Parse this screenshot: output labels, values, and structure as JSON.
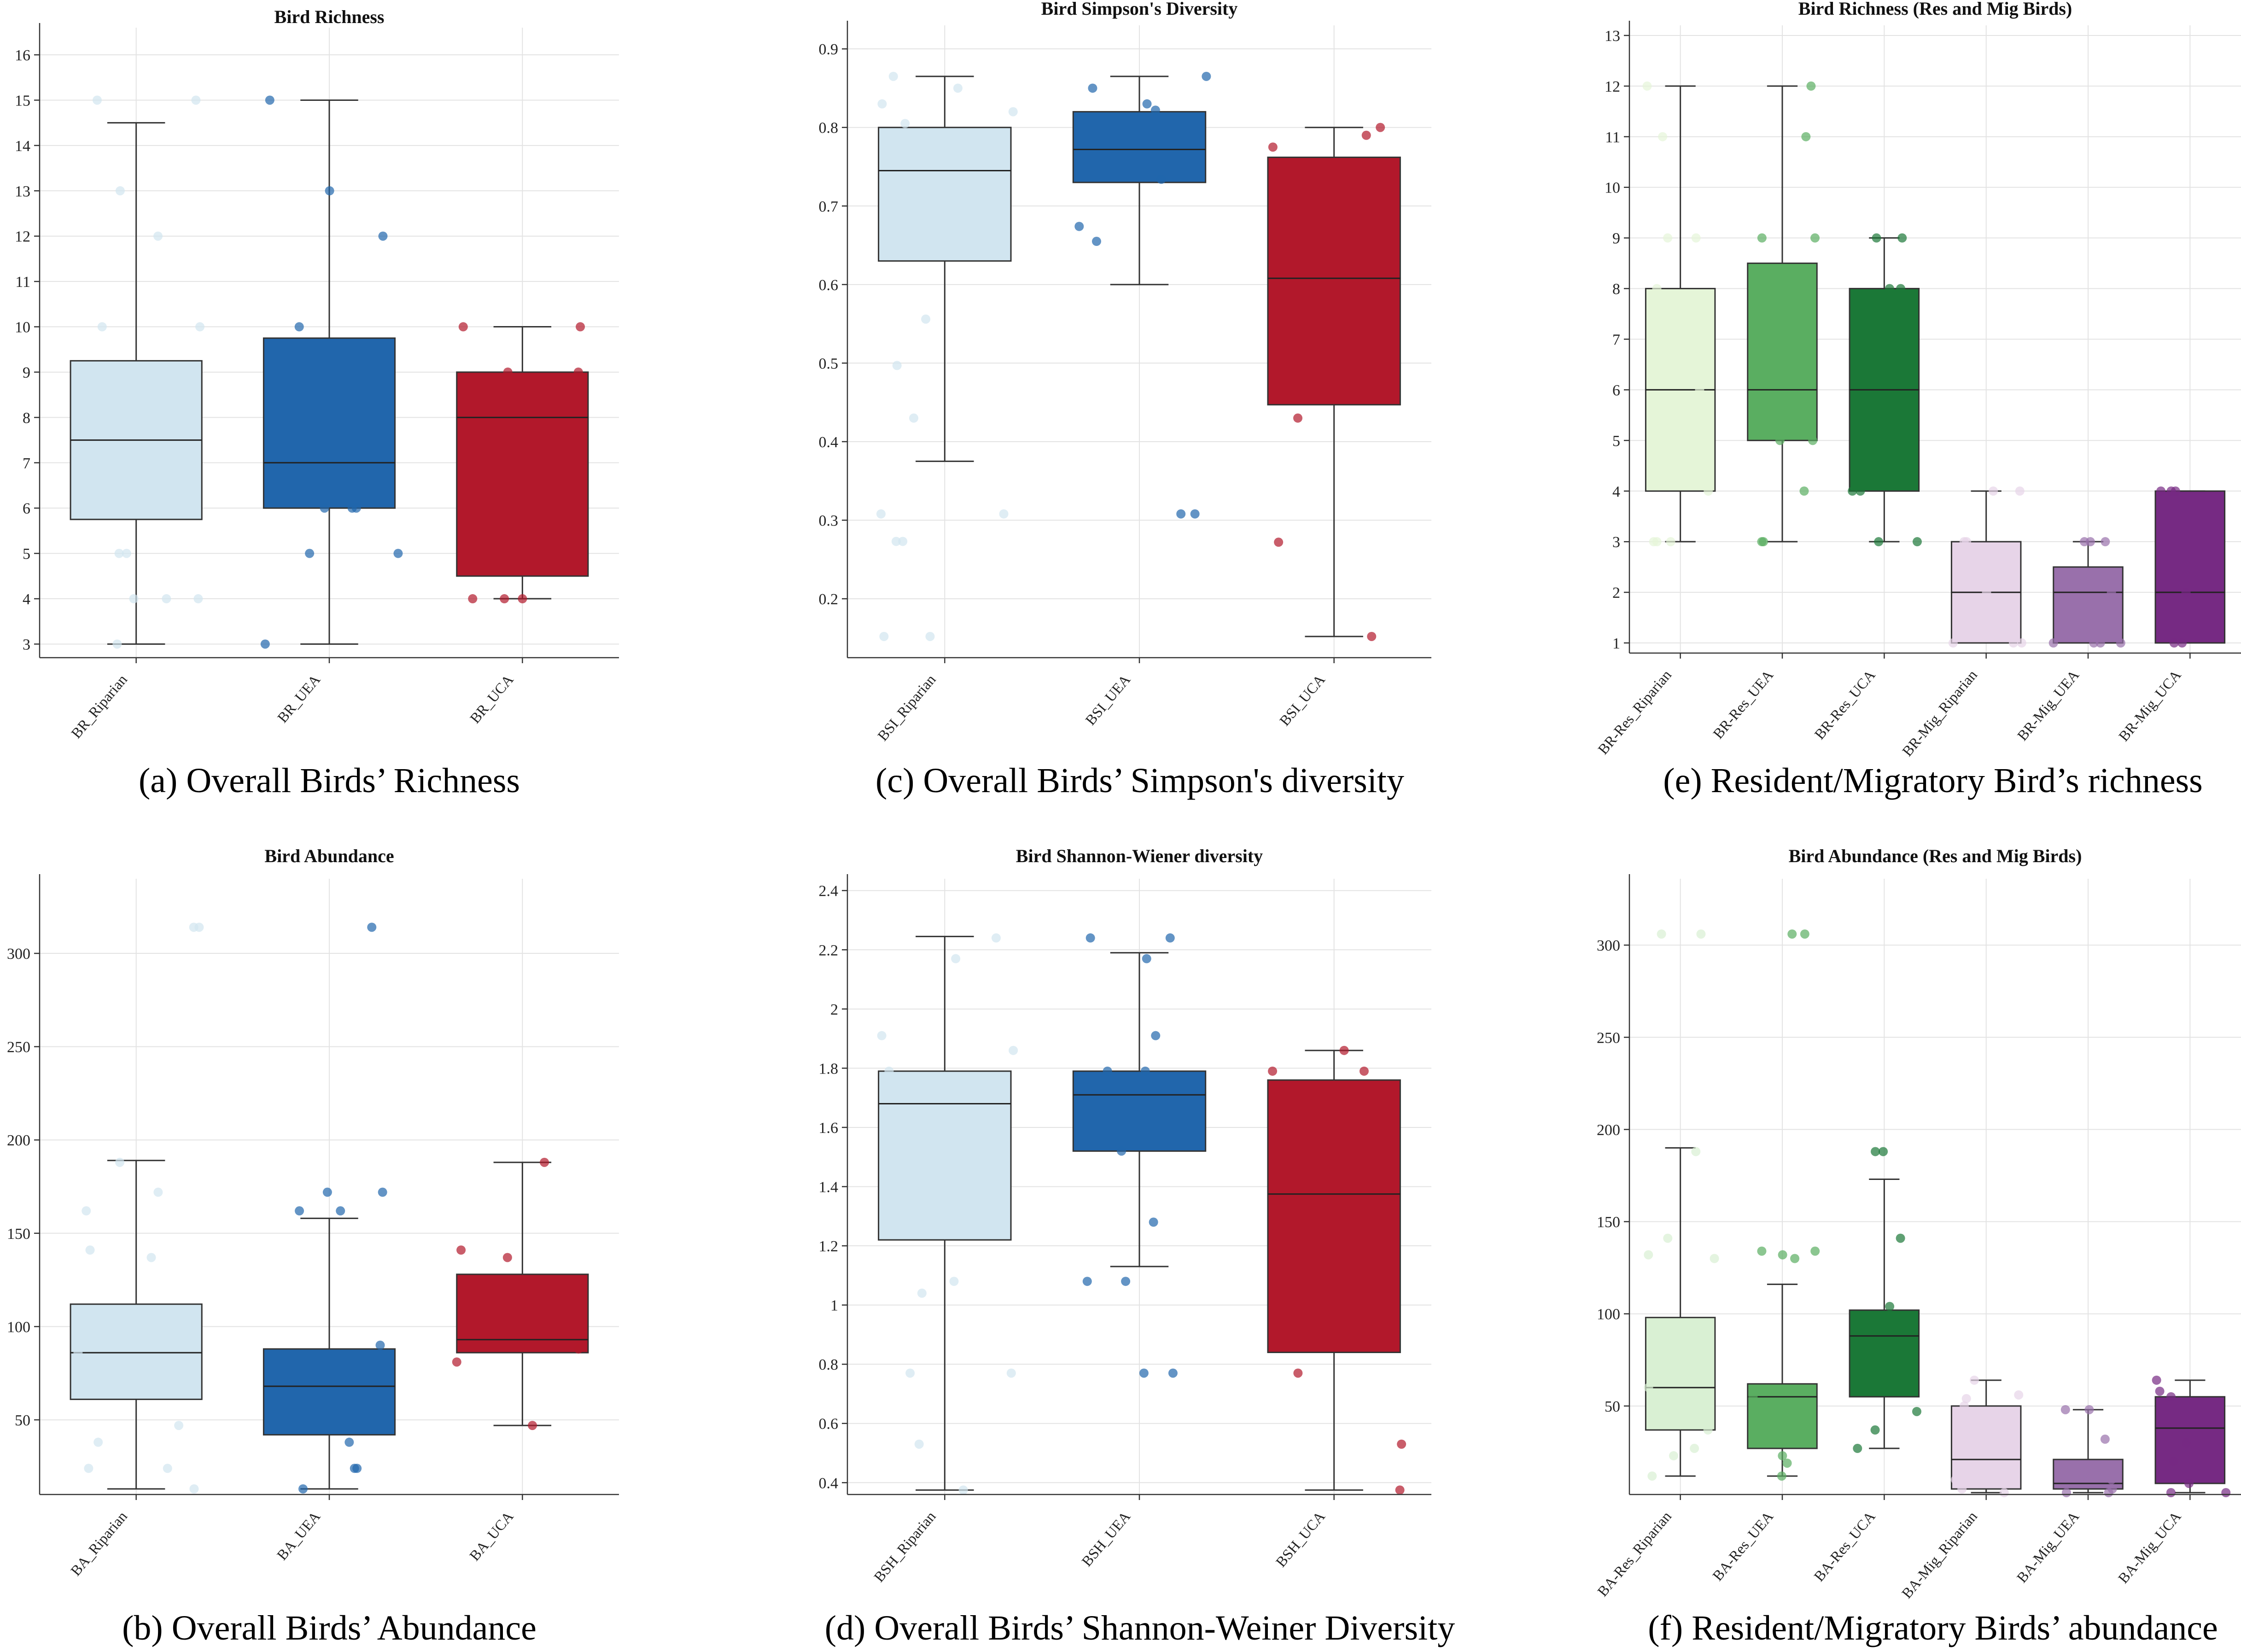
{
  "chart_data": [
    {
      "id": "a",
      "type": "box",
      "title": "Bird Richness",
      "caption": "(a) Overall Birds’ Richness",
      "ylim": [
        2.7,
        16.6
      ],
      "yticks": [
        3,
        4,
        5,
        6,
        7,
        8,
        9,
        10,
        11,
        12,
        13,
        14,
        15,
        16
      ],
      "categories": [
        "BR_Riparian",
        "BR_UEA",
        "BR_UCA"
      ],
      "colors": [
        "#d1e5f0",
        "#2166ac",
        "#b2182b"
      ],
      "boxes": [
        {
          "min": 3,
          "q1": 5.75,
          "median": 7.5,
          "q3": 9.25,
          "max": 14.5
        },
        {
          "min": 3,
          "q1": 6,
          "median": 7,
          "q3": 9.75,
          "max": 15
        },
        {
          "min": 4,
          "q1": 4.5,
          "median": 8,
          "q3": 9,
          "max": 10
        }
      ],
      "points": [
        [
          15,
          15,
          13,
          12,
          10,
          10,
          5,
          5,
          4,
          4,
          4,
          3
        ],
        [
          15,
          13,
          12,
          10,
          6,
          6,
          6,
          5,
          5,
          3
        ],
        [
          10,
          10,
          9,
          9,
          4,
          4,
          4
        ]
      ]
    },
    {
      "id": "c",
      "type": "box",
      "title": "Bird Simpson's Diversity",
      "caption": "(c) Overall Birds’ Simpson's diversity",
      "ylim": [
        0.125,
        0.93
      ],
      "yticks": [
        0.2,
        0.3,
        0.4,
        0.5,
        0.6,
        0.7,
        0.8,
        0.9
      ],
      "categories": [
        "BSI_Riparian",
        "BSI_UEA",
        "BSI_UCA"
      ],
      "colors": [
        "#d1e5f0",
        "#2166ac",
        "#b2182b"
      ],
      "boxes": [
        {
          "min": 0.375,
          "q1": 0.63,
          "median": 0.745,
          "q3": 0.8,
          "max": 0.865
        },
        {
          "min": 0.6,
          "q1": 0.73,
          "median": 0.772,
          "q3": 0.82,
          "max": 0.865
        },
        {
          "min": 0.152,
          "q1": 0.447,
          "median": 0.608,
          "q3": 0.762,
          "max": 0.8
        }
      ],
      "points": [
        [
          0.865,
          0.85,
          0.83,
          0.82,
          0.805,
          0.556,
          0.497,
          0.43,
          0.308,
          0.308,
          0.273,
          0.273,
          0.152,
          0.152
        ],
        [
          0.865,
          0.85,
          0.83,
          0.822,
          0.734,
          0.674,
          0.655,
          0.308,
          0.308
        ],
        [
          0.8,
          0.79,
          0.775,
          0.43,
          0.272,
          0.152
        ]
      ]
    },
    {
      "id": "e",
      "type": "box",
      "title": "Bird Richness (Res and Mig Birds)",
      "caption": "(e) Resident/Migratory Bird’s richness",
      "ylim": [
        0.8,
        13.2
      ],
      "yticks": [
        1,
        2,
        3,
        4,
        5,
        6,
        7,
        8,
        9,
        10,
        11,
        12,
        13
      ],
      "categories": [
        "BR-Res_Riparian",
        "BR-Res_UEA",
        "BR-Res_UCA",
        "BR-Mig_Riparian",
        "BR-Mig_UEA",
        "BR-Mig_UCA"
      ],
      "colors": [
        "#e5f5d8",
        "#5aae61",
        "#1b7837",
        "#e7d4e8",
        "#9970ab",
        "#762a83"
      ],
      "boxes": [
        {
          "min": 3,
          "q1": 4,
          "median": 6,
          "q3": 8,
          "max": 12
        },
        {
          "min": 3,
          "q1": 5,
          "median": 6,
          "q3": 8.5,
          "max": 12
        },
        {
          "min": 3,
          "q1": 4,
          "median": 6,
          "q3": 8,
          "max": 9
        },
        {
          "min": 1,
          "q1": 1,
          "median": 2,
          "q3": 3,
          "max": 4
        },
        {
          "min": 1,
          "q1": 1,
          "median": 2,
          "q3": 2.5,
          "max": 3
        },
        {
          "min": 1,
          "q1": 1,
          "median": 2,
          "q3": 4,
          "max": 4
        }
      ],
      "points": [
        [
          12,
          11,
          9,
          9,
          8,
          6,
          4,
          3,
          3,
          3
        ],
        [
          12,
          11,
          9,
          9,
          7,
          5,
          5,
          4,
          3,
          3
        ],
        [
          9,
          9,
          8,
          8,
          4,
          4,
          3,
          3
        ],
        [
          4,
          4,
          3,
          3,
          2,
          1,
          1,
          1
        ],
        [
          3,
          3,
          3,
          2,
          1,
          1,
          1,
          1
        ],
        [
          4,
          4,
          4,
          2,
          1,
          1
        ]
      ]
    },
    {
      "id": "b",
      "type": "box",
      "title": "Bird Abundance",
      "caption": "(b) Overall Birds’  Abundance",
      "ylim": [
        10,
        340
      ],
      "yticks": [
        50,
        100,
        150,
        200,
        250,
        300
      ],
      "categories": [
        "BA_Riparian",
        "BA_UEA",
        "BA_UCA"
      ],
      "colors": [
        "#d1e5f0",
        "#2166ac",
        "#b2182b"
      ],
      "boxes": [
        {
          "min": 13,
          "q1": 61,
          "median": 86,
          "q3": 112,
          "max": 189
        },
        {
          "min": 13,
          "q1": 42,
          "median": 68,
          "q3": 88,
          "max": 158
        },
        {
          "min": 47,
          "q1": 86,
          "median": 93,
          "q3": 128,
          "max": 188
        }
      ],
      "points": [
        [
          314,
          314,
          188,
          172,
          162,
          141,
          137,
          86,
          47,
          38,
          24,
          24,
          13
        ],
        [
          314,
          172,
          172,
          162,
          162,
          90,
          38,
          24,
          24,
          13
        ],
        [
          188,
          141,
          137,
          88,
          81,
          47
        ]
      ]
    },
    {
      "id": "d",
      "type": "box",
      "title": "Bird Shannon-Wiener diversity",
      "caption": "(d) Overall Birds’ Shannon-Weiner Diversity",
      "ylim": [
        0.36,
        2.44
      ],
      "yticks": [
        0.4,
        0.6,
        0.8,
        1,
        1.2,
        1.4,
        1.6,
        1.8,
        2,
        2.2,
        2.4
      ],
      "categories": [
        "BSH_Riparian",
        "BSH_UEA",
        "BSH_UCA"
      ],
      "colors": [
        "#d1e5f0",
        "#2166ac",
        "#b2182b"
      ],
      "boxes": [
        {
          "min": 0.375,
          "q1": 1.22,
          "median": 1.68,
          "q3": 1.79,
          "max": 2.245
        },
        {
          "min": 1.13,
          "q1": 1.52,
          "median": 1.71,
          "q3": 1.79,
          "max": 2.19
        },
        {
          "min": 0.375,
          "q1": 0.84,
          "median": 1.375,
          "q3": 1.76,
          "max": 1.86
        }
      ],
      "points": [
        [
          2.24,
          2.17,
          1.91,
          1.86,
          1.79,
          1.08,
          1.04,
          0.77,
          0.77,
          0.53,
          0.375
        ],
        [
          2.24,
          2.24,
          2.17,
          1.91,
          1.79,
          1.79,
          1.52,
          1.28,
          1.08,
          1.08,
          0.77,
          0.77
        ],
        [
          1.86,
          1.79,
          1.79,
          0.77,
          0.53,
          0.375
        ]
      ]
    },
    {
      "id": "f",
      "type": "box",
      "title": "Bird Abundance (Res and Mig Birds)",
      "caption": "(f) Resident/Migratory Birds’ abundance",
      "ylim": [
        2,
        336
      ],
      "yticks": [
        50,
        100,
        150,
        200,
        250,
        300
      ],
      "categories": [
        "BA-Res_Riparian",
        "BA-Res_UEA",
        "BA-Res_UCA",
        "BA-Mig_Riparian",
        "BA-Mig_UEA",
        "BA-Mig_UCA"
      ],
      "colors": [
        "#d9f0d3",
        "#5aae61",
        "#1b7837",
        "#e7d4e8",
        "#9970ab",
        "#762a83"
      ],
      "boxes": [
        {
          "min": 12,
          "q1": 37,
          "median": 60,
          "q3": 98,
          "max": 190
        },
        {
          "min": 12,
          "q1": 27,
          "median": 55,
          "q3": 62,
          "max": 116
        },
        {
          "min": 27,
          "q1": 55,
          "median": 88,
          "q3": 102,
          "max": 173
        },
        {
          "min": 3,
          "q1": 5,
          "median": 21,
          "q3": 50,
          "max": 64
        },
        {
          "min": 3,
          "q1": 5,
          "median": 8,
          "q3": 21,
          "max": 48
        },
        {
          "min": 3,
          "q1": 8,
          "median": 38,
          "q3": 55,
          "max": 64
        }
      ],
      "points": [
        [
          306,
          306,
          188,
          141,
          132,
          130,
          60,
          37,
          27,
          23,
          12
        ],
        [
          306,
          306,
          134,
          134,
          132,
          130,
          55,
          23,
          19,
          12
        ],
        [
          188,
          188,
          141,
          104,
          47,
          37,
          27
        ],
        [
          64,
          56,
          54,
          50,
          30,
          10,
          5,
          3
        ],
        [
          48,
          48,
          32,
          10,
          5,
          3,
          3
        ],
        [
          64,
          58,
          55,
          30,
          20,
          8,
          3,
          3
        ]
      ]
    }
  ]
}
